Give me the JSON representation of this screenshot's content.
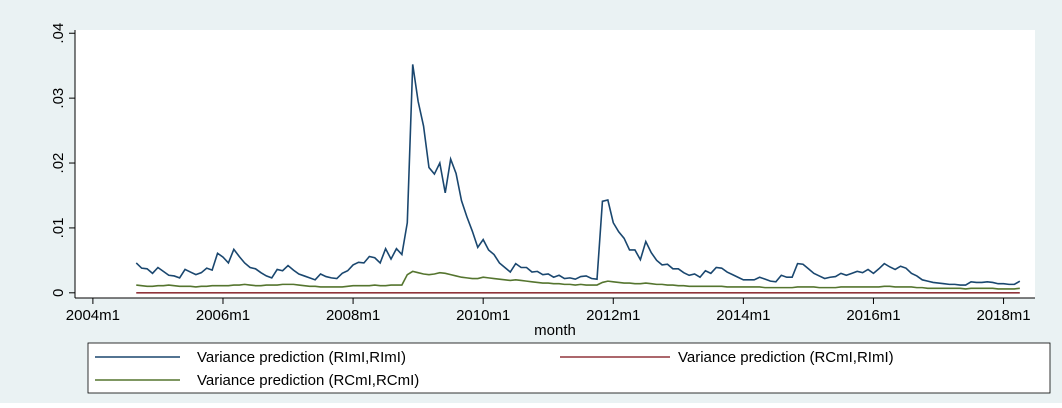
{
  "chart_data": {
    "type": "line",
    "x_label": "month",
    "x": [
      536,
      537,
      538,
      539,
      540,
      541,
      542,
      543,
      544,
      545,
      546,
      547,
      548,
      549,
      550,
      551,
      552,
      553,
      554,
      555,
      556,
      557,
      558,
      559,
      560,
      561,
      562,
      563,
      564,
      565,
      566,
      567,
      568,
      569,
      570,
      571,
      572,
      573,
      574,
      575,
      576,
      577,
      578,
      579,
      580,
      581,
      582,
      583,
      584,
      585,
      586,
      587,
      588,
      589,
      590,
      591,
      592,
      593,
      594,
      595,
      596,
      597,
      598,
      599,
      600,
      601,
      602,
      603,
      604,
      605,
      606,
      607,
      608,
      609,
      610,
      611,
      612,
      613,
      614,
      615,
      616,
      617,
      618,
      619,
      620,
      621,
      622,
      623,
      624,
      625,
      626,
      627,
      628,
      629,
      630,
      631,
      632,
      633,
      634,
      635,
      636,
      637,
      638,
      639,
      640,
      641,
      642,
      643,
      644,
      645,
      646,
      647,
      648,
      649,
      650,
      651,
      652,
      653,
      654,
      655,
      656,
      657,
      658,
      659,
      660,
      661,
      662,
      663,
      664,
      665,
      666,
      667,
      668,
      669,
      670,
      671,
      672,
      673,
      674,
      675,
      676,
      677,
      678,
      679,
      680,
      681,
      682,
      683,
      684,
      685,
      686,
      687,
      688,
      689,
      690,
      691,
      692,
      693,
      694,
      695,
      696,
      697,
      698,
      699
    ],
    "series": [
      {
        "name": "Variance prediction (RImI,RImI)",
        "color": "#1a476f",
        "values": [
          0.0046,
          0.0038,
          0.0037,
          0.003,
          0.0039,
          0.0033,
          0.0027,
          0.0026,
          0.0023,
          0.0036,
          0.0032,
          0.0028,
          0.0031,
          0.0038,
          0.0035,
          0.0061,
          0.0055,
          0.0046,
          0.0067,
          0.0056,
          0.0046,
          0.0039,
          0.0037,
          0.0031,
          0.0026,
          0.0023,
          0.0036,
          0.0034,
          0.0042,
          0.0035,
          0.0029,
          0.0026,
          0.0023,
          0.002,
          0.0029,
          0.0025,
          0.0023,
          0.0022,
          0.003,
          0.0034,
          0.0043,
          0.0047,
          0.0046,
          0.0056,
          0.0054,
          0.0046,
          0.0068,
          0.0052,
          0.0068,
          0.0059,
          0.0108,
          0.0352,
          0.0295,
          0.0257,
          0.0193,
          0.0183,
          0.02,
          0.0154,
          0.0206,
          0.0184,
          0.0142,
          0.0117,
          0.0095,
          0.007,
          0.0082,
          0.0066,
          0.0059,
          0.0046,
          0.0039,
          0.0032,
          0.0045,
          0.0039,
          0.0039,
          0.0032,
          0.0033,
          0.0028,
          0.0029,
          0.0024,
          0.0027,
          0.0022,
          0.0023,
          0.0021,
          0.0025,
          0.0026,
          0.0022,
          0.0021,
          0.0141,
          0.0143,
          0.0108,
          0.0094,
          0.0084,
          0.0066,
          0.0066,
          0.0051,
          0.0079,
          0.0062,
          0.005,
          0.0043,
          0.0044,
          0.0037,
          0.0037,
          0.0031,
          0.0027,
          0.0029,
          0.0024,
          0.0034,
          0.003,
          0.0039,
          0.0038,
          0.0032,
          0.0028,
          0.0024,
          0.002,
          0.002,
          0.002,
          0.0024,
          0.0021,
          0.0018,
          0.0017,
          0.0027,
          0.0024,
          0.0024,
          0.0045,
          0.0044,
          0.0037,
          0.003,
          0.0026,
          0.0022,
          0.0024,
          0.0025,
          0.003,
          0.0027,
          0.003,
          0.0033,
          0.0031,
          0.0036,
          0.003,
          0.0037,
          0.0045,
          0.004,
          0.0036,
          0.0041,
          0.0038,
          0.003,
          0.0026,
          0.002,
          0.0018,
          0.0016,
          0.0015,
          0.0014,
          0.0013,
          0.0013,
          0.0012,
          0.0012,
          0.0017,
          0.0016,
          0.0016,
          0.0017,
          0.0016,
          0.0014,
          0.0014,
          0.0013,
          0.0013,
          0.0018
        ]
      },
      {
        "name": "Variance prediction (RCmI,RImI)",
        "color": "#90353b",
        "values": [
          0,
          0,
          0,
          0,
          0,
          0,
          0,
          0,
          0,
          0,
          0,
          0,
          0,
          0,
          0,
          0,
          0,
          0,
          0,
          0,
          0,
          0,
          0,
          0,
          0,
          0,
          0,
          0,
          0,
          0,
          0,
          0,
          0,
          0,
          0,
          0,
          0,
          0,
          0,
          0,
          0,
          0,
          0,
          0,
          0,
          0,
          0,
          0,
          0,
          0,
          0,
          0,
          0,
          0,
          0,
          0,
          0,
          0,
          0,
          0,
          0,
          0,
          0,
          0,
          0,
          0,
          0,
          0,
          0,
          0,
          0,
          0,
          0,
          0,
          0,
          0,
          0,
          0,
          0,
          0,
          0,
          0,
          0,
          0,
          0,
          0,
          0,
          0,
          0,
          0,
          0,
          0,
          0,
          0,
          0,
          0,
          0,
          0,
          0,
          0,
          0,
          0,
          0,
          0,
          0,
          0,
          0,
          0,
          0,
          0,
          0,
          0,
          0,
          0,
          0,
          0,
          0,
          0,
          0,
          0,
          0,
          0,
          0,
          0,
          0,
          0,
          0,
          0,
          0,
          0,
          0,
          0,
          0,
          0,
          0,
          0,
          0,
          0,
          0,
          0,
          0,
          0,
          0,
          0,
          0,
          0,
          0,
          0,
          0,
          0,
          0,
          0,
          0,
          0,
          0,
          0,
          0,
          0,
          0,
          0,
          0,
          0,
          0,
          0
        ]
      },
      {
        "name": "Variance prediction (RCmI,RCmI)",
        "color": "#55752f",
        "values": [
          0.0012,
          0.0011,
          0.001,
          0.001,
          0.0011,
          0.0011,
          0.0012,
          0.0011,
          0.001,
          0.001,
          0.001,
          0.0009,
          0.001,
          0.001,
          0.0011,
          0.0011,
          0.0011,
          0.0011,
          0.0012,
          0.0012,
          0.0013,
          0.0012,
          0.0011,
          0.0011,
          0.0012,
          0.0012,
          0.0012,
          0.0013,
          0.0013,
          0.0013,
          0.0012,
          0.0011,
          0.001,
          0.001,
          0.0009,
          0.0009,
          0.0009,
          0.0009,
          0.0009,
          0.001,
          0.0011,
          0.0011,
          0.0011,
          0.0011,
          0.0012,
          0.0011,
          0.0011,
          0.0012,
          0.0012,
          0.0012,
          0.0028,
          0.0033,
          0.0031,
          0.0029,
          0.0028,
          0.0029,
          0.0031,
          0.003,
          0.0028,
          0.0026,
          0.0024,
          0.0023,
          0.0022,
          0.0022,
          0.0024,
          0.0023,
          0.0022,
          0.0021,
          0.002,
          0.0019,
          0.002,
          0.0019,
          0.0018,
          0.0017,
          0.0016,
          0.0015,
          0.0015,
          0.0014,
          0.0014,
          0.0013,
          0.0013,
          0.0012,
          0.0013,
          0.0012,
          0.0012,
          0.0012,
          0.0016,
          0.0018,
          0.0017,
          0.0016,
          0.0015,
          0.0015,
          0.0014,
          0.0014,
          0.0015,
          0.0014,
          0.0013,
          0.0013,
          0.0012,
          0.0012,
          0.0011,
          0.0011,
          0.001,
          0.001,
          0.001,
          0.001,
          0.001,
          0.001,
          0.001,
          0.0009,
          0.0009,
          0.0009,
          0.0009,
          0.0009,
          0.0009,
          0.0009,
          0.0008,
          0.0008,
          0.0008,
          0.0008,
          0.0008,
          0.0008,
          0.0009,
          0.0009,
          0.0009,
          0.0009,
          0.0008,
          0.0008,
          0.0008,
          0.0008,
          0.0009,
          0.0009,
          0.0009,
          0.0009,
          0.0009,
          0.0009,
          0.0009,
          0.0009,
          0.001,
          0.001,
          0.0009,
          0.0009,
          0.0009,
          0.0009,
          0.0008,
          0.0008,
          0.0007,
          0.0007,
          0.0007,
          0.0007,
          0.0007,
          0.0007,
          0.0007,
          0.0006,
          0.0007,
          0.0007,
          0.0007,
          0.0007,
          0.0007,
          0.0006,
          0.0006,
          0.0006,
          0.0006,
          0.0007
        ]
      }
    ],
    "xlim": [
      524.7,
      701.8
    ],
    "xticks": [
      {
        "value": 528,
        "label": "2004m1"
      },
      {
        "value": 552,
        "label": "2006m1"
      },
      {
        "value": 576,
        "label": "2008m1"
      },
      {
        "value": 600,
        "label": "2010m1"
      },
      {
        "value": 624,
        "label": "2012m1"
      },
      {
        "value": 648,
        "label": "2014m1"
      },
      {
        "value": 672,
        "label": "2016m1"
      },
      {
        "value": 696,
        "label": "2018m1"
      }
    ],
    "ylim": [
      -0.0008,
      0.0405
    ],
    "yticks": [
      0,
      {
        "value": 0.01,
        "label": ".01"
      },
      {
        "value": 0.02,
        "label": ".02"
      },
      {
        "value": 0.03,
        "label": ".03"
      },
      {
        "value": 0.04,
        "label": ".04"
      }
    ],
    "legend_position": "bottom"
  }
}
